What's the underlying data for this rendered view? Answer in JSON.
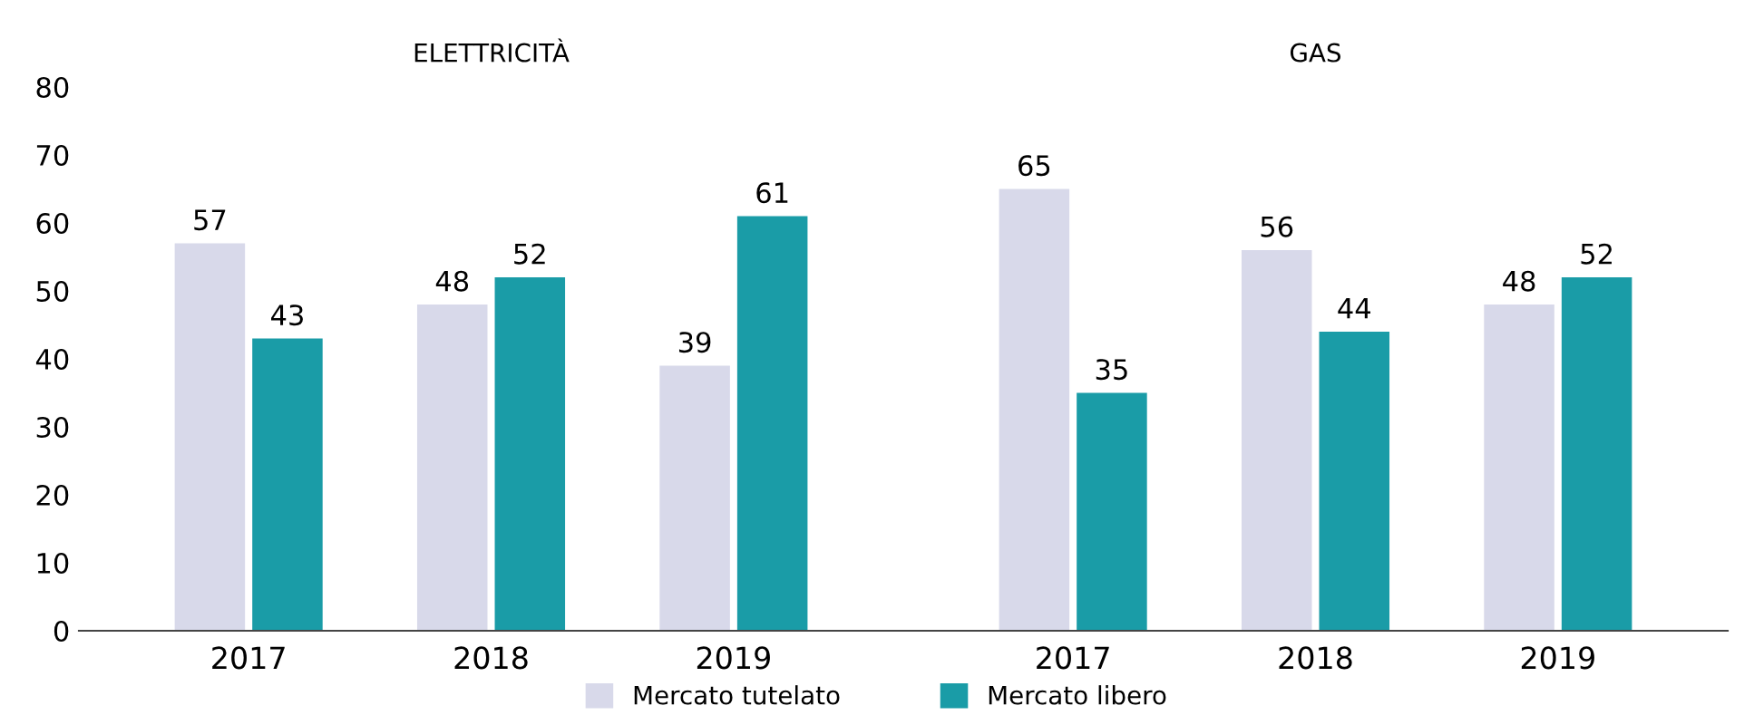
{
  "chart_data": [
    {
      "type": "bar",
      "title": "ELETTRICITÀ",
      "categories": [
        "2017",
        "2018",
        "2019"
      ],
      "series": [
        {
          "name": "Mercato tutelato",
          "color": "#d8d9ea",
          "values": [
            57,
            48,
            39
          ]
        },
        {
          "name": "Mercato libero",
          "color": "#1a9ca7",
          "values": [
            43,
            52,
            61
          ]
        }
      ],
      "ylim": [
        0,
        80
      ],
      "yticks": [
        0,
        10,
        20,
        30,
        40,
        50,
        60,
        70,
        80
      ],
      "data_labels": true,
      "grid": false,
      "legend": "bottom"
    },
    {
      "type": "bar",
      "title": "GAS",
      "categories": [
        "2017",
        "2018",
        "2019"
      ],
      "series": [
        {
          "color": "#d8d9ea",
          "values": [
            65,
            56,
            48
          ]
        },
        {
          "color": "#1a9ca7",
          "values": [
            35,
            44,
            52
          ]
        }
      ],
      "ylim": [
        0,
        80
      ],
      "yticks": [
        0,
        10,
        20,
        30,
        40,
        50,
        60,
        70,
        80
      ],
      "data_labels": true,
      "grid": false,
      "tick_labels": "x"
    }
  ]
}
